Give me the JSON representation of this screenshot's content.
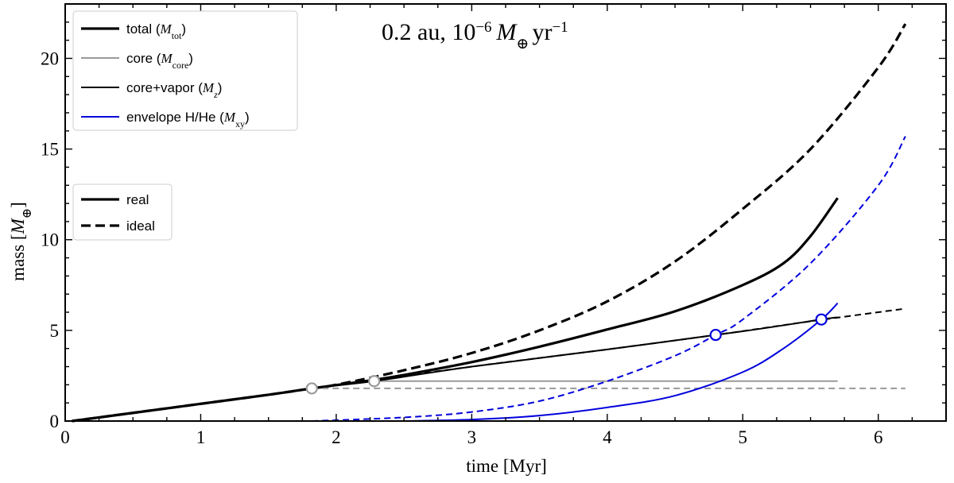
{
  "chart_data": {
    "type": "line",
    "title": "0.2 au, 10⁻⁶ M⊕ yr⁻¹",
    "xlabel": "time [Myr]",
    "ylabel": "mass [M⊕]",
    "xlim": [
      0,
      6.5
    ],
    "ylim": [
      0,
      23
    ],
    "xticks": [
      0,
      1,
      2,
      3,
      4,
      5,
      6
    ],
    "yticks": [
      0,
      5,
      10,
      15,
      20
    ],
    "grid": false,
    "legend_location": "upper-left",
    "colors": {
      "total": "#000000",
      "core": "#999999",
      "corevapor": "#000000",
      "envelope": "#0000dd"
    },
    "legend_components": [
      {
        "id": "total",
        "label": "total (M",
        "sub": "tot",
        "tail": ")"
      },
      {
        "id": "core",
        "label": "core (M",
        "sub": "core",
        "tail": ")"
      },
      {
        "id": "corevapor",
        "label": "core+vapor (M",
        "sub": "z",
        "tail": ")"
      },
      {
        "id": "envelope",
        "label": "envelope H/He (M",
        "sub": "xy",
        "tail": ")"
      }
    ],
    "legend_styles": [
      {
        "id": "real",
        "label": "real"
      },
      {
        "id": "ideal",
        "label": "ideal"
      }
    ],
    "series": [
      {
        "name": "total real",
        "component": "total",
        "style": "real",
        "x": [
          0.05,
          0.5,
          1,
          1.5,
          1.82,
          2.28,
          2.5,
          3,
          3.5,
          4,
          4.5,
          5,
          5.3,
          5.5,
          5.7
        ],
        "y": [
          0,
          0.45,
          0.95,
          1.45,
          1.8,
          2.27,
          2.54,
          3.25,
          4.1,
          5.05,
          6.05,
          7.5,
          8.7,
          10.2,
          12.3
        ]
      },
      {
        "name": "total ideal",
        "component": "total",
        "style": "ideal",
        "x": [
          0.05,
          0.5,
          1,
          1.5,
          1.82,
          2,
          2.5,
          3,
          3.5,
          4,
          4.5,
          5,
          5.5,
          6,
          6.2
        ],
        "y": [
          0,
          0.45,
          0.95,
          1.45,
          1.8,
          2.0,
          2.8,
          3.75,
          5.0,
          6.6,
          8.8,
          11.7,
          15.0,
          19.5,
          21.9
        ]
      },
      {
        "name": "core real",
        "component": "core",
        "style": "real",
        "x": [
          2.28,
          5.7
        ],
        "y": [
          2.2,
          2.2
        ]
      },
      {
        "name": "core ideal",
        "component": "core",
        "style": "ideal",
        "x": [
          1.82,
          6.2
        ],
        "y": [
          1.8,
          1.8
        ]
      },
      {
        "name": "core+vapor real",
        "component": "corevapor",
        "style": "real",
        "x": [
          0.05,
          1,
          1.82,
          2.28,
          3,
          4,
          5,
          5.58,
          5.7
        ],
        "y": [
          0,
          0.95,
          1.8,
          2.2,
          3.0,
          3.95,
          4.95,
          5.6,
          5.72
        ]
      },
      {
        "name": "core+vapor ideal",
        "component": "corevapor",
        "style": "ideal",
        "x": [
          1.82,
          3,
          4,
          4.8,
          5.5,
          6.2
        ],
        "y": [
          1.8,
          3.0,
          3.95,
          4.75,
          5.5,
          6.2
        ]
      },
      {
        "name": "envelope H/He real",
        "component": "envelope",
        "style": "real",
        "x": [
          2.5,
          3,
          3.5,
          4,
          4.5,
          5,
          5.3,
          5.58,
          5.7
        ],
        "y": [
          0,
          0.08,
          0.3,
          0.75,
          1.4,
          2.7,
          4.0,
          5.6,
          6.5
        ]
      },
      {
        "name": "envelope H/He ideal",
        "component": "envelope",
        "style": "ideal",
        "x": [
          1.82,
          2.5,
          3,
          3.5,
          4,
          4.5,
          4.8,
          5,
          5.5,
          6,
          6.2
        ],
        "y": [
          0,
          0.2,
          0.5,
          1.1,
          2.2,
          3.6,
          4.75,
          5.6,
          8.7,
          13.0,
          15.7
        ]
      }
    ],
    "markers": [
      {
        "name": "core isolation ideal",
        "x": 1.82,
        "y": 1.8,
        "color": "#999999"
      },
      {
        "name": "core isolation real",
        "x": 2.28,
        "y": 2.2,
        "color": "#999999"
      },
      {
        "name": "crossover ideal",
        "x": 4.8,
        "y": 4.75,
        "color": "#0000dd"
      },
      {
        "name": "crossover real",
        "x": 5.58,
        "y": 5.6,
        "color": "#0000dd"
      }
    ]
  }
}
